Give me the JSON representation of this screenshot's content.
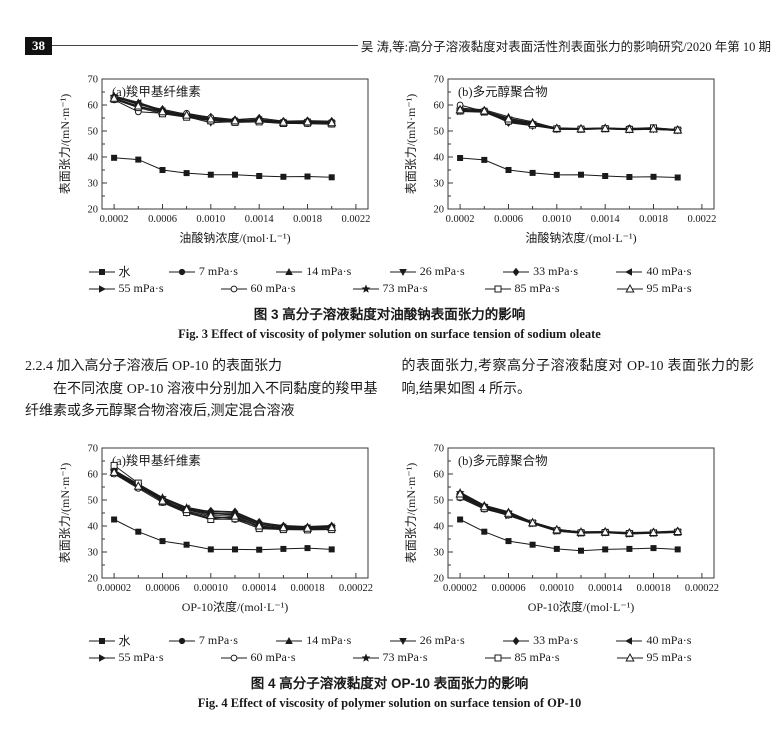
{
  "page": {
    "page_number": "38",
    "running_head": "吴 涛,等:高分子溶液黏度对表面活性剂表面张力的影响研究/2020 年第 10 期"
  },
  "section": {
    "heading": "2.2.4 加入高分子溶液后 OP-10 的表面张力",
    "left_para": "在不同浓度 OP-10 溶液中分别加入不同黏度的羧甲基纤维素或多元醇聚合物溶液后,测定混合溶液",
    "right_para": "的表面张力,考察高分子溶液黏度对 OP-10 表面张力的影响,结果如图 4 所示。"
  },
  "figure3": {
    "caption_zh": "图 3 高分子溶液黏度对油酸钠表面张力的影响",
    "caption_en": "Fig. 3 Effect of viscosity of polymer solution on surface tension of sodium oleate"
  },
  "figure4": {
    "caption_zh": "图 4 高分子溶液黏度对 OP-10 表面张力的影响",
    "caption_en": "Fig. 4 Effect of viscosity of polymer solution on surface tension of OP-10"
  },
  "legend": {
    "rows": [
      [
        {
          "label": "水",
          "marker": "filled-square"
        },
        {
          "label": "7 mPa·s",
          "marker": "filled-circle"
        },
        {
          "label": "14 mPa·s",
          "marker": "filled-triangle-up"
        },
        {
          "label": "26 mPa·s",
          "marker": "filled-triangle-down"
        },
        {
          "label": "33 mPa·s",
          "marker": "filled-diamond"
        },
        {
          "label": "40 mPa·s",
          "marker": "filled-triangle-left"
        }
      ],
      [
        {
          "label": "55 mPa·s",
          "marker": "filled-triangle-right"
        },
        {
          "label": "60 mPa·s",
          "marker": "open-circle"
        },
        {
          "label": "73 mPa·s",
          "marker": "filled-star"
        },
        {
          "label": "85 mPa·s",
          "marker": "open-square"
        },
        {
          "label": "95 mPa·s",
          "marker": "open-triangle-up"
        }
      ]
    ]
  },
  "chart_data": [
    {
      "type": "line",
      "panel": "figure3-a",
      "title": "(a)羧甲基纤维素",
      "xlabel": "油酸钠浓度/(mol·L⁻¹)",
      "ylabel": "表面张力/(mN·m⁻¹)",
      "xlim": [
        0.0001,
        0.0023
      ],
      "ylim": [
        20,
        70
      ],
      "yticks": [
        20,
        30,
        40,
        50,
        60,
        70
      ],
      "xticks": [
        0.0002,
        0.0006,
        0.001,
        0.0014,
        0.0018,
        0.0022
      ],
      "xtick_labels": [
        "0.0002",
        "0.0006",
        "0.0010",
        "0.0014",
        "0.0018",
        "0.0022"
      ],
      "x": [
        0.0002,
        0.0004,
        0.0006,
        0.0008,
        0.001,
        0.0012,
        0.0014,
        0.0016,
        0.0018,
        0.002
      ],
      "series": [
        {
          "name": "水",
          "marker": "filled-square",
          "values": [
            39.7,
            39.0,
            35.0,
            33.8,
            33.2,
            33.2,
            32.7,
            32.4,
            32.5,
            32.2
          ]
        },
        {
          "name": "7 mPa·s",
          "marker": "filled-circle",
          "values": [
            63.2,
            60.5,
            57.8,
            56.2,
            55.0,
            54.2,
            54.5,
            53.6,
            53.8,
            53.5
          ]
        },
        {
          "name": "14 mPa·s",
          "marker": "filled-triangle-up",
          "values": [
            63.5,
            61.0,
            58.0,
            56.0,
            54.0,
            54.0,
            54.2,
            53.4,
            53.6,
            53.3
          ]
        },
        {
          "name": "26 mPa·s",
          "marker": "filled-triangle-down",
          "values": [
            62.5,
            59.5,
            57.0,
            55.5,
            53.2,
            53.6,
            53.8,
            53.2,
            53.4,
            53.0
          ]
        },
        {
          "name": "33 mPa·s",
          "marker": "filled-diamond",
          "values": [
            63.0,
            60.2,
            58.4,
            56.4,
            55.4,
            54.4,
            55.0,
            53.8,
            54.0,
            53.8
          ]
        },
        {
          "name": "40 mPa·s",
          "marker": "filled-triangle-left",
          "values": [
            62.8,
            60.8,
            57.6,
            55.8,
            54.4,
            53.8,
            54.3,
            53.3,
            53.5,
            53.1
          ]
        },
        {
          "name": "55 mPa·s",
          "marker": "filled-triangle-right",
          "values": [
            62.4,
            59.2,
            57.2,
            55.6,
            54.1,
            53.7,
            53.9,
            53.2,
            53.3,
            53.0
          ]
        },
        {
          "name": "60 mPa·s",
          "marker": "open-circle",
          "values": [
            62.0,
            57.4,
            56.8,
            56.8,
            55.2,
            53.4,
            53.6,
            53.0,
            52.8,
            52.6
          ]
        },
        {
          "name": "73 mPa·s",
          "marker": "filled-star",
          "values": [
            63.3,
            60.4,
            57.5,
            55.9,
            54.5,
            54.0,
            54.4,
            53.5,
            53.6,
            53.3
          ]
        },
        {
          "name": "85 mPa·s",
          "marker": "open-square",
          "values": [
            62.2,
            59.0,
            56.6,
            55.3,
            53.9,
            53.3,
            53.5,
            52.9,
            53.0,
            52.7
          ]
        },
        {
          "name": "95 mPa·s",
          "marker": "open-triangle-up",
          "values": [
            62.6,
            59.6,
            57.4,
            56.1,
            54.6,
            53.9,
            54.1,
            53.4,
            53.5,
            53.2
          ]
        }
      ]
    },
    {
      "type": "line",
      "panel": "figure3-b",
      "title": "(b)多元醇聚合物",
      "xlabel": "油酸钠浓度/(mol·L⁻¹)",
      "ylabel": "表面张力/(mN·m⁻¹)",
      "xlim": [
        0.0001,
        0.0023
      ],
      "ylim": [
        20,
        70
      ],
      "yticks": [
        20,
        30,
        40,
        50,
        60,
        70
      ],
      "xticks": [
        0.0002,
        0.0006,
        0.001,
        0.0014,
        0.0018,
        0.0022
      ],
      "xtick_labels": [
        "0.0002",
        "0.0006",
        "0.0010",
        "0.0014",
        "0.0018",
        "0.0022"
      ],
      "x": [
        0.0002,
        0.0004,
        0.0006,
        0.0008,
        0.001,
        0.0012,
        0.0014,
        0.0016,
        0.0018,
        0.002
      ],
      "series": [
        {
          "name": "水",
          "marker": "filled-square",
          "values": [
            39.6,
            38.9,
            35.0,
            33.9,
            33.1,
            33.2,
            32.7,
            32.3,
            32.4,
            32.1
          ]
        },
        {
          "name": "7 mPa·s",
          "marker": "filled-circle",
          "values": [
            58.2,
            58.0,
            54.5,
            53.0,
            51.2,
            51.0,
            51.2,
            50.9,
            51.1,
            50.6
          ]
        },
        {
          "name": "14 mPa·s",
          "marker": "filled-triangle-up",
          "values": [
            58.8,
            58.2,
            55.5,
            53.5,
            51.0,
            50.8,
            51.0,
            50.7,
            50.8,
            50.4
          ]
        },
        {
          "name": "26 mPa·s",
          "marker": "filled-triangle-down",
          "values": [
            57.6,
            57.4,
            53.4,
            52.2,
            50.6,
            50.6,
            50.8,
            50.5,
            50.6,
            50.2
          ]
        },
        {
          "name": "33 mPa·s",
          "marker": "filled-diamond",
          "values": [
            57.8,
            57.8,
            53.2,
            52.0,
            50.8,
            50.9,
            51.1,
            50.8,
            50.9,
            50.5
          ]
        },
        {
          "name": "40 mPa·s",
          "marker": "filled-triangle-left",
          "values": [
            58.0,
            57.6,
            54.0,
            52.4,
            50.9,
            50.7,
            50.9,
            50.6,
            50.7,
            50.3
          ]
        },
        {
          "name": "55 mPa·s",
          "marker": "filled-triangle-right",
          "values": [
            57.5,
            57.2,
            53.6,
            52.6,
            50.7,
            50.6,
            50.8,
            50.5,
            50.6,
            50.2
          ]
        },
        {
          "name": "60 mPa·s",
          "marker": "open-circle",
          "values": [
            60.0,
            57.5,
            54.2,
            52.8,
            51.0,
            50.8,
            51.0,
            51.0,
            51.3,
            50.5
          ]
        },
        {
          "name": "73 mPa·s",
          "marker": "filled-star",
          "values": [
            58.4,
            57.9,
            55.0,
            53.2,
            51.1,
            50.9,
            51.1,
            50.8,
            50.9,
            50.5
          ]
        },
        {
          "name": "85 mPa·s",
          "marker": "open-square",
          "values": [
            57.7,
            57.3,
            53.8,
            52.3,
            50.8,
            50.7,
            50.9,
            50.6,
            51.2,
            50.3
          ]
        },
        {
          "name": "95 mPa·s",
          "marker": "open-triangle-up",
          "values": [
            58.1,
            57.7,
            54.6,
            52.9,
            51.0,
            50.8,
            51.0,
            50.7,
            50.8,
            50.4
          ]
        }
      ]
    },
    {
      "type": "line",
      "panel": "figure4-a",
      "title": "(a)羧甲基纤维素",
      "xlabel": "OP-10浓度/(mol·L⁻¹)",
      "ylabel": "表面张力/(mN·m⁻¹)",
      "xlim": [
        1e-05,
        0.00023
      ],
      "ylim": [
        20,
        70
      ],
      "yticks": [
        20,
        30,
        40,
        50,
        60,
        70
      ],
      "xticks": [
        2e-05,
        6e-05,
        0.0001,
        0.00014,
        0.00018,
        0.00022
      ],
      "xtick_labels": [
        "0.00002",
        "0.00006",
        "0.00010",
        "0.00014",
        "0.00018",
        "0.00022"
      ],
      "x": [
        2e-05,
        4e-05,
        6e-05,
        8e-05,
        0.0001,
        0.00012,
        0.00014,
        0.00016,
        0.00018,
        0.0002
      ],
      "series": [
        {
          "name": "水",
          "marker": "filled-square",
          "values": [
            42.5,
            37.8,
            34.2,
            32.8,
            31.0,
            31.0,
            30.9,
            31.2,
            31.5,
            31.0
          ]
        },
        {
          "name": "7 mPa·s",
          "marker": "filled-circle",
          "values": [
            61.0,
            55.5,
            50.5,
            46.5,
            44.5,
            44.8,
            40.8,
            39.8,
            39.5,
            39.8
          ]
        },
        {
          "name": "14 mPa·s",
          "marker": "filled-triangle-up",
          "values": [
            61.5,
            56.2,
            51.0,
            47.2,
            45.5,
            45.2,
            41.2,
            40.2,
            39.8,
            40.2
          ]
        },
        {
          "name": "26 mPa·s",
          "marker": "filled-triangle-down",
          "values": [
            60.5,
            55.0,
            49.5,
            45.5,
            43.0,
            43.5,
            39.5,
            39.0,
            38.8,
            39.2
          ]
        },
        {
          "name": "33 mPa·s",
          "marker": "filled-diamond",
          "values": [
            60.8,
            55.2,
            50.0,
            46.0,
            45.8,
            45.5,
            41.5,
            40.0,
            39.5,
            40.0
          ]
        },
        {
          "name": "40 mPa·s",
          "marker": "filled-triangle-left",
          "values": [
            61.2,
            55.8,
            50.2,
            46.8,
            44.8,
            44.2,
            40.5,
            39.6,
            39.3,
            39.6
          ]
        },
        {
          "name": "55 mPa·s",
          "marker": "filled-triangle-right",
          "values": [
            60.2,
            54.8,
            49.8,
            45.8,
            43.5,
            43.0,
            39.8,
            39.2,
            39.0,
            39.3
          ]
        },
        {
          "name": "60 mPa·s",
          "marker": "open-circle",
          "values": [
            60.0,
            54.5,
            49.0,
            45.0,
            42.8,
            42.5,
            39.2,
            38.8,
            38.6,
            38.8
          ]
        },
        {
          "name": "73 mPa·s",
          "marker": "filled-star",
          "values": [
            61.3,
            56.0,
            50.8,
            47.0,
            45.0,
            44.5,
            40.6,
            39.7,
            39.4,
            39.7
          ]
        },
        {
          "name": "85 mPa·s",
          "marker": "open-square",
          "values": [
            63.3,
            56.5,
            49.2,
            45.2,
            42.5,
            42.8,
            39.0,
            38.6,
            38.5,
            38.6
          ]
        },
        {
          "name": "95 mPa·s",
          "marker": "open-triangle-up",
          "values": [
            60.6,
            55.3,
            49.6,
            46.3,
            44.0,
            43.8,
            40.0,
            39.3,
            39.1,
            39.4
          ]
        }
      ]
    },
    {
      "type": "line",
      "panel": "figure4-b",
      "title": "(b)多元醇聚合物",
      "xlabel": "OP-10浓度/(mol·L⁻¹)",
      "ylabel": "表面张力/(mN·m⁻¹)",
      "xlim": [
        1e-05,
        0.00023
      ],
      "ylim": [
        20,
        70
      ],
      "yticks": [
        20,
        30,
        40,
        50,
        60,
        70
      ],
      "xticks": [
        2e-05,
        6e-05,
        0.0001,
        0.00014,
        0.00018,
        0.00022
      ],
      "xtick_labels": [
        "0.00002",
        "0.00006",
        "0.00010",
        "0.00014",
        "0.00018",
        "0.00022"
      ],
      "x": [
        2e-05,
        4e-05,
        6e-05,
        8e-05,
        0.0001,
        0.00012,
        0.00014,
        0.00016,
        0.00018,
        0.0002
      ],
      "series": [
        {
          "name": "水",
          "marker": "filled-square",
          "values": [
            42.5,
            37.8,
            34.2,
            32.8,
            31.2,
            30.5,
            31.0,
            31.2,
            31.5,
            31.0
          ]
        },
        {
          "name": "7 mPa·s",
          "marker": "filled-circle",
          "values": [
            52.5,
            47.5,
            45.0,
            41.3,
            38.5,
            37.8,
            37.8,
            37.4,
            37.6,
            38.0
          ]
        },
        {
          "name": "14 mPa·s",
          "marker": "filled-triangle-up",
          "values": [
            53.0,
            48.0,
            45.5,
            41.5,
            38.8,
            37.6,
            37.7,
            37.3,
            37.5,
            37.9
          ]
        },
        {
          "name": "26 mPa·s",
          "marker": "filled-triangle-down",
          "values": [
            51.5,
            47.0,
            44.3,
            41.0,
            38.2,
            37.3,
            37.5,
            37.0,
            37.3,
            37.6
          ]
        },
        {
          "name": "33 mPa·s",
          "marker": "filled-diamond",
          "values": [
            52.2,
            47.8,
            45.2,
            41.4,
            38.6,
            37.7,
            37.9,
            37.5,
            37.7,
            38.1
          ]
        },
        {
          "name": "40 mPa·s",
          "marker": "filled-triangle-left",
          "values": [
            52.0,
            47.2,
            44.6,
            41.1,
            38.3,
            37.4,
            37.6,
            37.1,
            37.4,
            37.7
          ]
        },
        {
          "name": "55 mPa·s",
          "marker": "filled-triangle-right",
          "values": [
            51.8,
            46.8,
            44.0,
            40.9,
            38.0,
            37.2,
            37.4,
            36.9,
            37.2,
            37.5
          ]
        },
        {
          "name": "60 mPa·s",
          "marker": "open-circle",
          "values": [
            50.8,
            46.5,
            44.2,
            41.0,
            38.4,
            37.5,
            37.6,
            37.2,
            37.4,
            37.8
          ]
        },
        {
          "name": "73 mPa·s",
          "marker": "filled-star",
          "values": [
            52.8,
            47.9,
            45.3,
            41.5,
            38.7,
            37.7,
            37.8,
            37.4,
            37.6,
            38.0
          ]
        },
        {
          "name": "85 mPa·s",
          "marker": "open-square",
          "values": [
            51.2,
            46.7,
            44.4,
            41.1,
            38.2,
            37.4,
            37.5,
            37.1,
            37.3,
            37.6
          ]
        },
        {
          "name": "95 mPa·s",
          "marker": "open-triangle-up",
          "values": [
            52.3,
            47.4,
            44.9,
            41.2,
            38.5,
            37.6,
            37.7,
            37.3,
            37.5,
            37.9
          ]
        }
      ]
    }
  ]
}
